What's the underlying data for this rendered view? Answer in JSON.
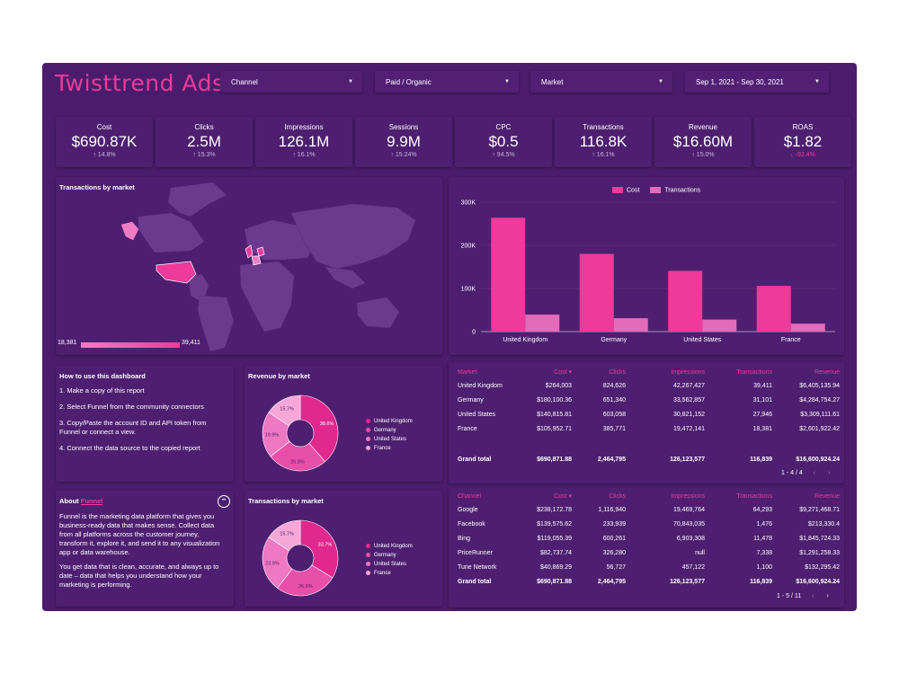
{
  "colors": {
    "bg": "#4b1c6c",
    "accent": "#ee3a9a",
    "accent_light": "#f07cc3",
    "pink_mid": "#e46aba"
  },
  "header": {
    "title": "Twisttrend Ads",
    "filters": [
      {
        "label": "Channel"
      },
      {
        "label": "Paid / Organic"
      },
      {
        "label": "Market"
      },
      {
        "label": "Sep 1, 2021 - Sep 30, 2021"
      }
    ]
  },
  "kpis": [
    {
      "label": "Cost",
      "value": "$690.87K",
      "change": "14.8%",
      "dir": "up"
    },
    {
      "label": "Clicks",
      "value": "2.5M",
      "change": "15.3%",
      "dir": "up"
    },
    {
      "label": "Impressions",
      "value": "126.1M",
      "change": "16.1%",
      "dir": "up"
    },
    {
      "label": "Sessions",
      "value": "9.9M",
      "change": "15.24%",
      "dir": "up"
    },
    {
      "label": "CPC",
      "value": "$0.5",
      "change": "94.5%",
      "dir": "up"
    },
    {
      "label": "Transactions",
      "value": "116.8K",
      "change": "16.1%",
      "dir": "up"
    },
    {
      "label": "Revenue",
      "value": "$16.60M",
      "change": "15.0%",
      "dir": "up"
    },
    {
      "label": "ROAS",
      "value": "$1.82",
      "change": "-92.4%",
      "dir": "down"
    }
  ],
  "map": {
    "title": "Transactions by market",
    "scale_min": "18,381",
    "scale_max": "39,411"
  },
  "chart_data": {
    "type": "bar",
    "categories": [
      "United Kingdom",
      "Germany",
      "United States",
      "France"
    ],
    "series": [
      {
        "name": "Cost",
        "values": [
          264003,
          180100,
          140816,
          105953
        ],
        "color": "#ee3a9a"
      },
      {
        "name": "Transactions",
        "values": [
          39411,
          31101,
          27946,
          18381
        ],
        "color": "#e46aba"
      }
    ],
    "yticks": [
      "0",
      "100K",
      "200K",
      "300K"
    ],
    "ylim": [
      0,
      300000
    ]
  },
  "howto": {
    "title": "How to use this dashboard",
    "steps": [
      "1. Make a copy of this report",
      "2. Select Funnel from the community connectors",
      "3. Copy/Paste the account ID and API token from Funnel or connect a view.",
      "4. Connect the data source to the copied report"
    ]
  },
  "about": {
    "title_prefix": "About ",
    "title_link": "Funnel",
    "p1": "Funnel is the marketing data platform that gives you business-ready data that makes sense. Collect data from all platforms across the customer journey, transform it, explore it, and send it to any visualization app or data warehouse.",
    "p2": "You get data that is clean, accurate, and always up to date – data that helps you understand how your marketing is performing."
  },
  "revenue_pie": {
    "title": "Revenue by market",
    "slices": [
      38.6,
      25.8,
      19.9,
      15.7
    ],
    "labels": [
      "38.6%",
      "25.8%",
      "19.9%",
      "15.7%"
    ]
  },
  "trans_pie": {
    "title": "Transactions by market",
    "slices": [
      33.7,
      26.6,
      23.9,
      15.7
    ],
    "labels": [
      "33.7%",
      "26.6%",
      "23.9%",
      "15.7%"
    ]
  },
  "pie_legend": [
    "United Kingdom",
    "Germany",
    "United States",
    "France"
  ],
  "market_table": {
    "headers": [
      "Market",
      "Cost ▾",
      "Clicks",
      "Impressions",
      "Transactions",
      "Revenue"
    ],
    "rows": [
      [
        "United Kingdom",
        "$264,003",
        "824,626",
        "42,267,427",
        "39,411",
        "$6,405,135.94"
      ],
      [
        "Germany",
        "$180,100.36",
        "651,340",
        "33,562,857",
        "31,101",
        "$4,284,754.27"
      ],
      [
        "United States",
        "$140,815.81",
        "603,058",
        "30,821,152",
        "27,946",
        "$3,309,111.61"
      ],
      [
        "France",
        "$105,952.71",
        "385,771",
        "19,472,141",
        "18,381",
        "$2,601,922.42"
      ]
    ],
    "total": [
      "Grand total",
      "$690,871.88",
      "2,464,795",
      "126,123,577",
      "116,839",
      "$16,600,924.24"
    ],
    "pager": "1 - 4 / 4"
  },
  "channel_table": {
    "headers": [
      "Channel",
      "Cost ▾",
      "Clicks",
      "Impressions",
      "Transactions",
      "Revenue"
    ],
    "rows": [
      [
        "Google",
        "$238,172.78",
        "1,116,940",
        "19,469,764",
        "64,293",
        "$9,271,468.71"
      ],
      [
        "Facebook",
        "$139,575.62",
        "233,939",
        "70,843,035",
        "1,476",
        "$213,330.4"
      ],
      [
        "Bing",
        "$119,055.39",
        "600,261",
        "6,903,308",
        "11,478",
        "$1,845,724.33"
      ],
      [
        "PriceRunner",
        "$82,737.74",
        "326,280",
        "null",
        "7,338",
        "$1,291,258.33"
      ],
      [
        "Tune Network",
        "$40,869.29",
        "56,727",
        "457,122",
        "1,100",
        "$132,295.42"
      ]
    ],
    "total": [
      "Grand total",
      "$690,871.88",
      "2,464,795",
      "126,123,577",
      "116,839",
      "$16,600,924.24"
    ],
    "pager": "1 - 5 / 11"
  }
}
